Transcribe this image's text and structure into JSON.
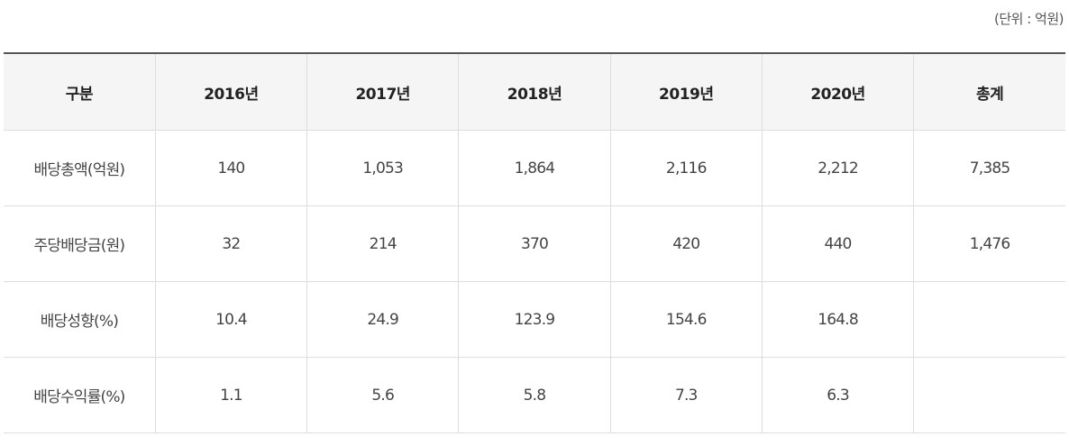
{
  "unit_label": "(단위 : 억원)",
  "table": {
    "headers": [
      "구분",
      "2016년",
      "2017년",
      "2018년",
      "2019년",
      "2020년",
      "총계"
    ],
    "rows": [
      [
        "배당총액(억원)",
        "140",
        "1,053",
        "1,864",
        "2,116",
        "2,212",
        "7,385"
      ],
      [
        "주당배당금(원)",
        "32",
        "214",
        "370",
        "420",
        "440",
        "1,476"
      ],
      [
        "배당성향(%)",
        "10.4",
        "24.9",
        "123.9",
        "154.6",
        "164.8",
        ""
      ],
      [
        "배당수익률(%)",
        "1.1",
        "5.6",
        "5.8",
        "7.3",
        "6.3",
        ""
      ]
    ]
  }
}
